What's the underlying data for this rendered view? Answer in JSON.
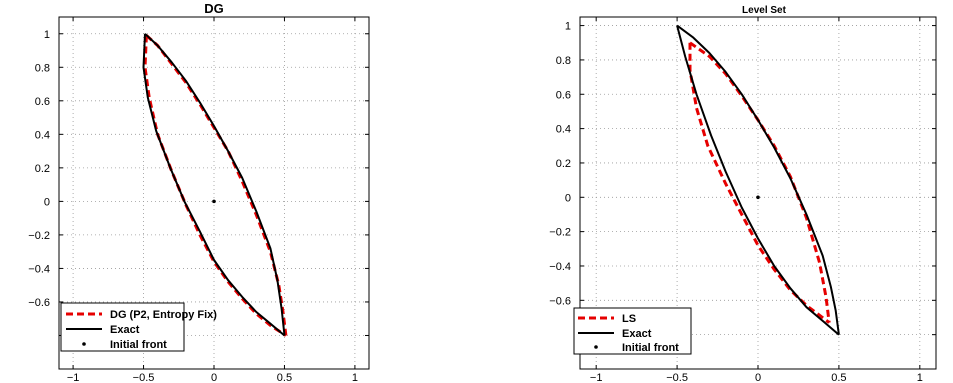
{
  "chart_data": [
    {
      "type": "line",
      "title": "DG",
      "xlabel": "",
      "ylabel": "",
      "xlim": [
        -1.1,
        1.1
      ],
      "ylim": [
        -1.0,
        1.1
      ],
      "xticks": [
        -1,
        -0.5,
        0,
        0.5,
        1
      ],
      "xtick_labels": [
        "−1",
        "−0.5",
        "0",
        "0.5",
        "1"
      ],
      "yticks": [
        1,
        0.8,
        0.6,
        0.4,
        0.2,
        0,
        -0.2,
        -0.4,
        -0.6,
        -0.8
      ],
      "ytick_labels": [
        "1",
        "0.8",
        "0.6",
        "0.4",
        "0.2",
        "0",
        "−0.2",
        "−0.4",
        "−0.6",
        ""
      ],
      "grid": true,
      "legend_position": "bottom-left",
      "series": [
        {
          "name": "DG (P2, Entropy Fix)",
          "style": "dashed",
          "color": "#e60000",
          "upper": {
            "x": [
              -0.48,
              -0.4,
              -0.3,
              -0.2,
              -0.1,
              0.0,
              0.1,
              0.2,
              0.3,
              0.4,
              0.46,
              0.49,
              0.51
            ],
            "y": [
              0.99,
              0.93,
              0.82,
              0.71,
              0.58,
              0.44,
              0.3,
              0.12,
              -0.08,
              -0.3,
              -0.5,
              -0.66,
              -0.8
            ]
          },
          "lower": {
            "x": [
              -0.48,
              -0.49,
              -0.46,
              -0.4,
              -0.3,
              -0.2,
              -0.1,
              0.0,
              0.1,
              0.2,
              0.3,
              0.4,
              0.51
            ],
            "y": [
              0.99,
              0.8,
              0.62,
              0.4,
              0.18,
              -0.02,
              -0.2,
              -0.36,
              -0.48,
              -0.58,
              -0.67,
              -0.74,
              -0.8
            ]
          }
        },
        {
          "name": "Exact",
          "style": "solid",
          "color": "#000000",
          "upper": {
            "x": [
              -0.49,
              -0.4,
              -0.3,
              -0.2,
              -0.1,
              0.0,
              0.1,
              0.2,
              0.3,
              0.4,
              0.45,
              0.48,
              0.5
            ],
            "y": [
              1.0,
              0.93,
              0.83,
              0.72,
              0.59,
              0.45,
              0.3,
              0.14,
              -0.06,
              -0.28,
              -0.47,
              -0.64,
              -0.8
            ]
          },
          "lower": {
            "x": [
              -0.49,
              -0.5,
              -0.47,
              -0.41,
              -0.31,
              -0.21,
              -0.1,
              0.0,
              0.1,
              0.2,
              0.3,
              0.4,
              0.5
            ],
            "y": [
              1.0,
              0.8,
              0.62,
              0.42,
              0.2,
              0.0,
              -0.18,
              -0.35,
              -0.47,
              -0.57,
              -0.66,
              -0.73,
              -0.8
            ]
          }
        },
        {
          "name": "Initial front",
          "style": "dot",
          "color": "#000000",
          "points": {
            "x": [
              0.0
            ],
            "y": [
              0.0
            ]
          }
        }
      ]
    },
    {
      "type": "line",
      "title": "Level Set",
      "xlabel": "",
      "ylabel": "",
      "xlim": [
        -1.1,
        1.1
      ],
      "ylim": [
        -1.0,
        1.05
      ],
      "xticks": [
        -1,
        -0.5,
        0,
        0.5,
        1
      ],
      "xtick_labels": [
        "−1",
        "−0.5",
        "0",
        "0.5",
        "1"
      ],
      "yticks": [
        1,
        0.8,
        0.6,
        0.4,
        0.2,
        0,
        -0.2,
        -0.4,
        -0.6,
        -0.8
      ],
      "ytick_labels": [
        "1",
        "0.8",
        "0.6",
        "0.4",
        "0.2",
        "0",
        "−0.2",
        "−0.4",
        "−0.6",
        ""
      ],
      "grid": true,
      "legend_position": "bottom-left",
      "series": [
        {
          "name": "LS",
          "style": "dashed",
          "color": "#e60000",
          "upper": {
            "x": [
              -0.42,
              -0.3,
              -0.2,
              -0.1,
              0.0,
              0.1,
              0.2,
              0.3,
              0.38,
              0.42,
              0.44
            ],
            "y": [
              0.9,
              0.82,
              0.72,
              0.59,
              0.45,
              0.3,
              0.12,
              -0.12,
              -0.38,
              -0.58,
              -0.73
            ]
          },
          "lower": {
            "x": [
              -0.42,
              -0.42,
              -0.38,
              -0.31,
              -0.2,
              -0.1,
              0.0,
              0.1,
              0.2,
              0.3,
              0.44
            ],
            "y": [
              0.9,
              0.74,
              0.52,
              0.3,
              0.08,
              -0.1,
              -0.28,
              -0.42,
              -0.54,
              -0.63,
              -0.73
            ]
          }
        },
        {
          "name": "Exact",
          "style": "solid",
          "color": "#000000",
          "upper": {
            "x": [
              -0.5,
              -0.4,
              -0.3,
              -0.2,
              -0.1,
              0.0,
              0.1,
              0.2,
              0.3,
              0.4,
              0.45,
              0.48,
              0.5
            ],
            "y": [
              1.0,
              0.93,
              0.84,
              0.73,
              0.6,
              0.45,
              0.29,
              0.11,
              -0.1,
              -0.34,
              -0.52,
              -0.66,
              -0.8
            ]
          },
          "lower": {
            "x": [
              -0.5,
              -0.45,
              -0.38,
              -0.29,
              -0.2,
              -0.1,
              0.0,
              0.1,
              0.2,
              0.3,
              0.4,
              0.5
            ],
            "y": [
              1.0,
              0.82,
              0.6,
              0.36,
              0.15,
              -0.06,
              -0.24,
              -0.4,
              -0.53,
              -0.64,
              -0.72,
              -0.8
            ]
          }
        },
        {
          "name": "Initial front",
          "style": "dot",
          "color": "#000000",
          "points": {
            "x": [
              0.0
            ],
            "y": [
              0.0
            ]
          }
        }
      ]
    }
  ]
}
